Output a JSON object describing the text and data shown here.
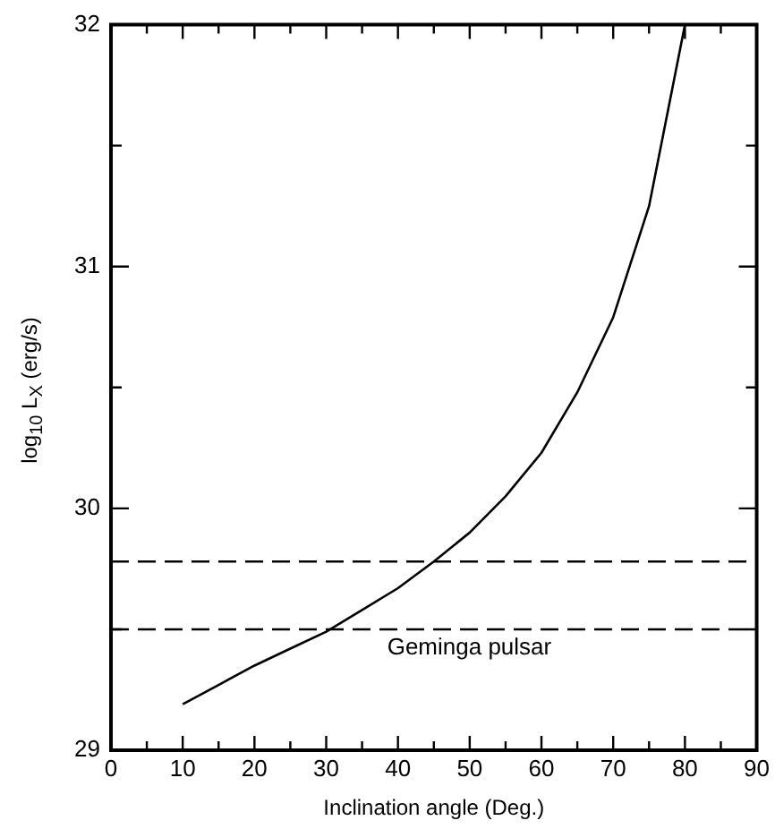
{
  "chart_data": {
    "type": "line",
    "xlabel": "Inclination angle (Deg.)",
    "ylabel": "log$_{10}$ L$_{X}$ (erg/s)",
    "x": [
      10,
      15,
      20,
      25,
      30,
      35,
      40,
      45,
      50,
      55,
      60,
      65,
      70,
      75,
      80
    ],
    "series": [
      {
        "color": "#000000",
        "values": [
          29.19,
          29.27,
          29.35,
          29.42,
          29.49,
          29.58,
          29.67,
          29.78,
          29.9,
          30.05,
          30.23,
          30.48,
          30.79,
          31.25,
          32
        ]
      }
    ],
    "xlim": [
      0,
      90
    ],
    "xticks": [
      0,
      {
        "value": 5,
        "label": null
      },
      10,
      {
        "value": 15,
        "label": null
      },
      20,
      {
        "value": 25,
        "label": null
      },
      30,
      {
        "value": 35,
        "label": null
      },
      40,
      {
        "value": 45,
        "label": null
      },
      50,
      {
        "value": 55,
        "label": null
      },
      60,
      {
        "value": 65,
        "label": null
      },
      70,
      {
        "value": 75,
        "label": null
      },
      80,
      {
        "value": 85,
        "label": null
      },
      90
    ],
    "ylim": [
      29,
      32
    ],
    "yticks": [
      29,
      {
        "value": 29.5,
        "label": null
      },
      30,
      {
        "value": 30.5,
        "label": null
      },
      31,
      {
        "value": 31.5,
        "label": null
      },
      32
    ],
    "ref_lines": [
      {
        "axis": "y",
        "value": 29.78,
        "line_style": "dashed",
        "color": "#000000"
      },
      {
        "axis": "y",
        "value": 29.5,
        "label": "Geminga pulsar",
        "line_style": "dashed",
        "color": "#000000"
      }
    ],
    "grid": false,
    "legend": false,
    "marker": "none",
    "line_style": "solid"
  }
}
